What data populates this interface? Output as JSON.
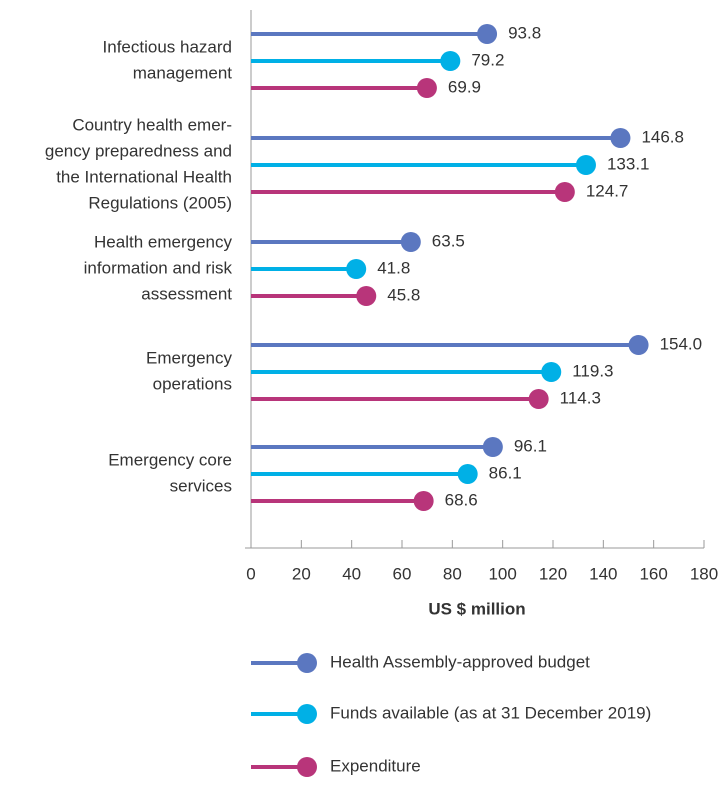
{
  "chart_data": {
    "type": "lollipop",
    "categories": [
      [
        "Infectious hazard",
        "management"
      ],
      [
        "Country health emer-",
        "gency preparedness and",
        "the International Health",
        "Regulations (2005)"
      ],
      [
        "Health emergency",
        "information and risk",
        "assessment"
      ],
      [
        "Emergency",
        "operations"
      ],
      [
        "Emergency core",
        "services"
      ]
    ],
    "series": [
      {
        "name": "Health Assembly-approved budget",
        "color": "#5b77c0",
        "values": [
          93.8,
          146.8,
          63.5,
          154.0,
          96.1
        ],
        "value_labels": [
          "93.8",
          "146.8",
          "63.5",
          "154.0",
          "96.1"
        ]
      },
      {
        "name": "Funds available (as at 31 December 2019)",
        "color": "#00b0e6",
        "values": [
          79.2,
          133.1,
          41.8,
          119.3,
          86.1
        ],
        "value_labels": [
          "79.2",
          "133.1",
          "41.8",
          "119.3",
          "86.1"
        ]
      },
      {
        "name": "Expenditure",
        "color": "#b8357a",
        "values": [
          69.9,
          124.7,
          45.8,
          114.3,
          68.6
        ],
        "value_labels": [
          "69.9",
          "124.7",
          "45.8",
          "114.3",
          "68.6"
        ]
      }
    ],
    "x_label": "US $ million",
    "xlim": [
      0,
      180
    ],
    "xticks": [
      0,
      20,
      40,
      60,
      80,
      100,
      120,
      140,
      160,
      180
    ],
    "legend": "bottom"
  }
}
